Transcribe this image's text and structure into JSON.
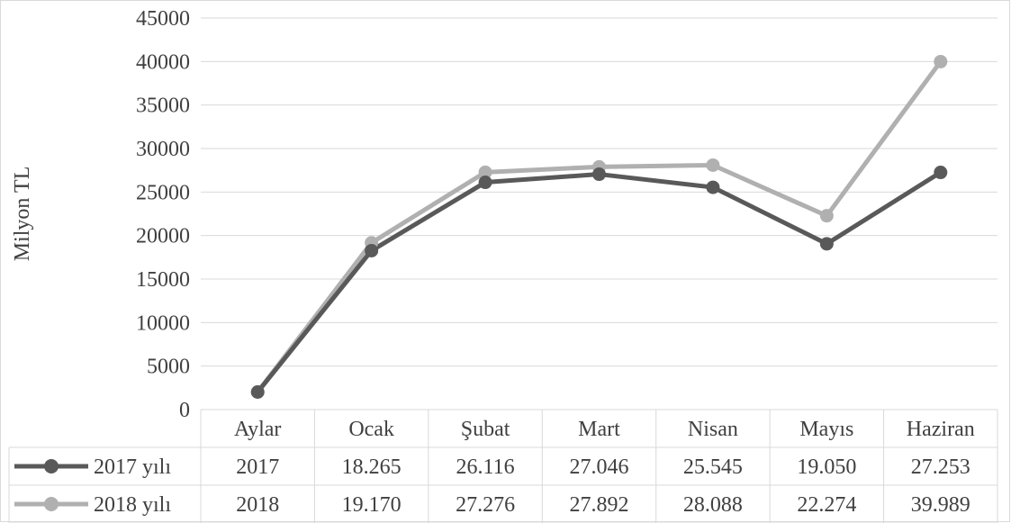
{
  "colors": {
    "series_2017": "#595959",
    "series_2018": "#b0b0b0",
    "grid": "#d9d9d9",
    "text": "#404040",
    "border": "#d9d9d9"
  },
  "chart_data": {
    "type": "line",
    "ylabel": "Milyon TL",
    "ylim": [
      0,
      45000
    ],
    "yticks": [
      "0",
      "5000",
      "10000",
      "15000",
      "20000",
      "25000",
      "30000",
      "35000",
      "40000",
      "45000"
    ],
    "grid": true,
    "legend": "data-table-left",
    "categories": [
      "Aylar",
      "Ocak",
      "Şubat",
      "Mart",
      "Nisan",
      "Mayıs",
      "Haziran"
    ],
    "series": [
      {
        "name": "2017 yılı",
        "values": [
          2017,
          18265,
          26116,
          27046,
          25545,
          19050,
          27253
        ],
        "labels": [
          "2017",
          "18.265",
          "26.116",
          "27.046",
          "25.545",
          "19.050",
          "27.253"
        ]
      },
      {
        "name": "2018 yılı",
        "values": [
          2018,
          19170,
          27276,
          27892,
          28088,
          22274,
          39989
        ],
        "labels": [
          "2018",
          "19.170",
          "27.276",
          "27.892",
          "28.088",
          "22.274",
          "39.989"
        ]
      }
    ]
  }
}
